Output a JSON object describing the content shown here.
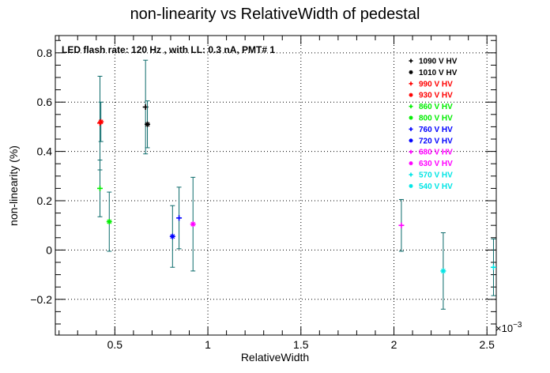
{
  "chart_data": {
    "type": "scatter",
    "title": "non-linearity vs RelativeWidth of pedestal",
    "annotation": "LED flash rate: 120 Hz , with LL: 0.3 nA, PMT# 1",
    "xlabel": "RelativeWidth",
    "ylabel": "non-linearity (%)",
    "x_multiplier": "×10",
    "x_multiplier_exp": "−3",
    "xlim": [
      0.00018,
      0.00255
    ],
    "ylim": [
      -0.345,
      0.87
    ],
    "x_ticks": [
      {
        "value": 0.0005,
        "label": "0.5"
      },
      {
        "value": 0.001,
        "label": "1"
      },
      {
        "value": 0.0015,
        "label": "1.5"
      },
      {
        "value": 0.002,
        "label": "2"
      },
      {
        "value": 0.0025,
        "label": "2.5"
      }
    ],
    "y_ticks": [
      {
        "value": -0.2,
        "label": "−0.2"
      },
      {
        "value": 0,
        "label": "0"
      },
      {
        "value": 0.2,
        "label": "0.2"
      },
      {
        "value": 0.4,
        "label": "0.4"
      },
      {
        "value": 0.6,
        "label": "0.6"
      },
      {
        "value": 0.8,
        "label": "0.8"
      }
    ],
    "grid": true,
    "legend_position": "top-right",
    "series": [
      {
        "name": "1090 V HV",
        "color": "#000000",
        "marker": "plus",
        "x": 0.000665,
        "y": 0.58,
        "yerr": 0.19
      },
      {
        "name": "1010 V HV",
        "color": "#000000",
        "marker": "star",
        "x": 0.000675,
        "y": 0.51,
        "yerr": 0.095
      },
      {
        "name": "990 V HV",
        "color": "#ff0000",
        "marker": "plus",
        "x": 0.00042,
        "y": 0.515,
        "yerr": 0.19
      },
      {
        "name": "930 V HV",
        "color": "#ff0000",
        "marker": "star",
        "x": 0.000425,
        "y": 0.52,
        "yerr": 0.08
      },
      {
        "name": "860 V HV",
        "color": "#00ee00",
        "marker": "plus",
        "x": 0.00042,
        "y": 0.25,
        "yerr": 0.115
      },
      {
        "name": "800 V HV",
        "color": "#00ee00",
        "marker": "star",
        "x": 0.00047,
        "y": 0.115,
        "yerr": 0.12
      },
      {
        "name": "760 V HV",
        "color": "#0000ff",
        "marker": "plus",
        "x": 0.000845,
        "y": 0.13,
        "yerr": 0.125
      },
      {
        "name": "720 V HV",
        "color": "#0000ff",
        "marker": "star",
        "x": 0.00081,
        "y": 0.055,
        "yerr": 0.125
      },
      {
        "name": "680 V HV",
        "color": "#ff00ff",
        "marker": "plus",
        "x": 0.00204,
        "y": 0.1,
        "yerr": 0.105
      },
      {
        "name": "630 V HV",
        "color": "#ff00ff",
        "marker": "star",
        "x": 0.00092,
        "y": 0.105,
        "yerr": 0.19
      },
      {
        "name": "570 V HV",
        "color": "#00e5e5",
        "marker": "plus",
        "x": 0.002535,
        "y": -0.07,
        "yerr": 0.115
      },
      {
        "name": "540 V HV",
        "color": "#00e5e5",
        "marker": "star",
        "x": 0.002265,
        "y": -0.085,
        "yerr": 0.155
      }
    ]
  }
}
